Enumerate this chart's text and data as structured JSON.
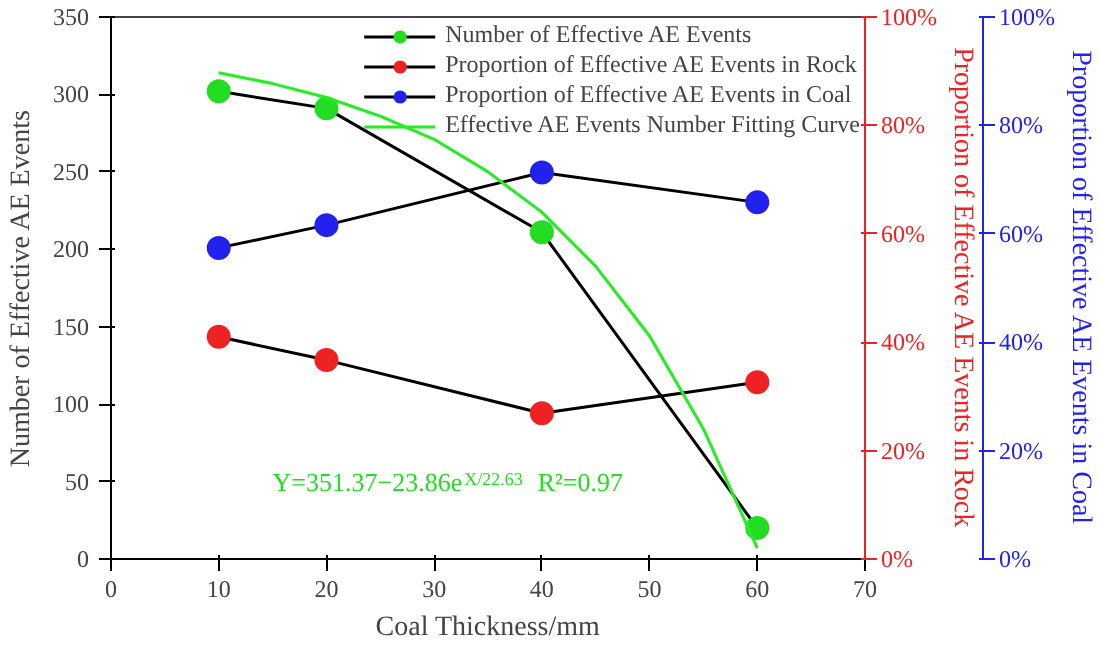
{
  "chart_data": {
    "type": "line",
    "xlabel": "Coal Thickness/mm",
    "ylabel": "Number of Effective AE Events",
    "y2label": "Proportion of Effective AE Events in Rock",
    "y3label": "Proportion of Effective AE Events in Coal",
    "x": [
      10,
      20,
      40,
      60
    ],
    "series": [
      {
        "name": "Number of Effective AE Events",
        "color": "#22dd22",
        "values": [
          302,
          291,
          211,
          20
        ]
      },
      {
        "name": "Proportion of Effective AE Events in Rock",
        "color": "#ee2222",
        "axis": "y2",
        "values": [
          41,
          36.7,
          26.9,
          32.6
        ]
      },
      {
        "name": "Proportion of Effective AE Events in Coal",
        "color": "#2222ee",
        "axis": "y3",
        "values": [
          57.4,
          61.6,
          71.3,
          65.8
        ]
      },
      {
        "name": "Effective AE Events Number Fitting Curve",
        "color": "#22ee22",
        "marker": "none",
        "x": [
          10,
          15,
          20,
          25,
          30,
          35,
          40,
          45,
          50,
          55,
          60
        ],
        "values": [
          314,
          307,
          298,
          286,
          271,
          250,
          224,
          189,
          144,
          84,
          7
        ]
      }
    ],
    "marker": "circle",
    "xlim": [
      0,
      70
    ],
    "xticks": [
      0,
      10,
      20,
      30,
      40,
      50,
      60,
      70
    ],
    "ylim": [
      0,
      350
    ],
    "yticks": [
      0,
      50,
      100,
      150,
      200,
      250,
      300,
      350
    ],
    "y2lim": [
      0,
      100
    ],
    "y2ticks": [
      {
        "value": 0,
        "label": "0%"
      },
      {
        "value": 20,
        "label": "20%"
      },
      {
        "value": 40,
        "label": "40%"
      },
      {
        "value": 60,
        "label": "60%"
      },
      {
        "value": 80,
        "label": "80%"
      },
      {
        "value": 100,
        "label": "100%"
      }
    ],
    "y3lim": [
      0,
      100
    ],
    "y3ticks": [
      {
        "value": 0,
        "label": "0%"
      },
      {
        "value": 20,
        "label": "20%"
      },
      {
        "value": 40,
        "label": "40%"
      },
      {
        "value": 60,
        "label": "60%"
      },
      {
        "value": 80,
        "label": "80%"
      },
      {
        "value": 100,
        "label": "100%"
      }
    ],
    "annotations": [
      "Y=351.37−23.86e$^{X/22.63}$  R²=0.97"
    ],
    "legend": "top right",
    "grid": false
  }
}
